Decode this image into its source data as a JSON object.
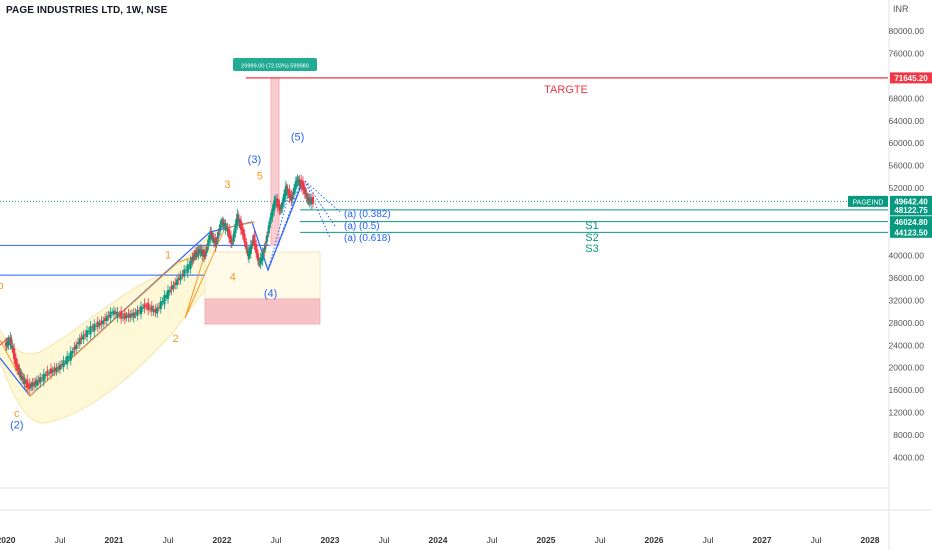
{
  "header": {
    "title": "PAGE INDUSTRIES LTD, 1W, NSE"
  },
  "y_axis": {
    "unit": "INR",
    "ticks": [
      {
        "v": 80000,
        "label": "80000.00"
      },
      {
        "v": 76000,
        "label": "76000.00"
      },
      {
        "v": 68000,
        "label": "68000.00"
      },
      {
        "v": 64000,
        "label": "64000.00"
      },
      {
        "v": 60000,
        "label": "60000.00"
      },
      {
        "v": 56000,
        "label": "56000.00"
      },
      {
        "v": 52000,
        "label": "52000.00"
      },
      {
        "v": 40000,
        "label": "40000.00"
      },
      {
        "v": 36000,
        "label": "36000.00"
      },
      {
        "v": 32000,
        "label": "32000.00"
      },
      {
        "v": 28000,
        "label": "28000.00"
      },
      {
        "v": 24000,
        "label": "24000.00"
      },
      {
        "v": 20000,
        "label": "20000.00"
      },
      {
        "v": 16000,
        "label": "16000.00"
      },
      {
        "v": 12000,
        "label": "12000.00"
      },
      {
        "v": 8000,
        "label": "8000.00"
      },
      {
        "v": 4000,
        "label": "4000.00"
      }
    ]
  },
  "x_axis": {
    "ticks": [
      {
        "t": 2020.0,
        "label": "2020"
      },
      {
        "t": 2020.5,
        "label": "Jul"
      },
      {
        "t": 2021.0,
        "label": "2021"
      },
      {
        "t": 2021.5,
        "label": "Jul"
      },
      {
        "t": 2022.0,
        "label": "2022"
      },
      {
        "t": 2022.5,
        "label": "Jul"
      },
      {
        "t": 2023.0,
        "label": "2023"
      },
      {
        "t": 2023.5,
        "label": "Jul"
      },
      {
        "t": 2024.0,
        "label": "2024"
      },
      {
        "t": 2024.5,
        "label": "Jul"
      },
      {
        "t": 2025.0,
        "label": "2025"
      },
      {
        "t": 2025.5,
        "label": "Jul"
      },
      {
        "t": 2026.0,
        "label": "2026"
      },
      {
        "t": 2026.5,
        "label": "Jul"
      },
      {
        "t": 2027.0,
        "label": "2027"
      },
      {
        "t": 2027.5,
        "label": "Jul"
      },
      {
        "t": 2028.0,
        "label": "2028"
      }
    ]
  },
  "chart_data": {
    "type": "line",
    "title": "PAGE INDUSTRIES LTD, 1W, NSE",
    "ylabel": "INR",
    "ylim": [
      2000,
      84000
    ],
    "xlim": [
      2020.0,
      2028.6
    ],
    "series": [
      {
        "name": "PAGEIND",
        "x": [
          2020.0,
          2020.05,
          2020.1,
          2020.15,
          2020.22,
          2020.3,
          2020.4,
          2020.5,
          2020.6,
          2020.7,
          2020.8,
          2020.9,
          2021.0,
          2021.1,
          2021.2,
          2021.3,
          2021.4,
          2021.5,
          2021.6,
          2021.7,
          2021.75,
          2021.8,
          2021.85,
          2021.9,
          2021.95,
          2022.0,
          2022.05,
          2022.1,
          2022.15,
          2022.2,
          2022.25,
          2022.3,
          2022.35,
          2022.4,
          2022.45,
          2022.5,
          2022.55,
          2022.6,
          2022.65,
          2022.7,
          2022.75,
          2022.8,
          2022.85
        ],
        "y": [
          24000,
          25000,
          20500,
          18500,
          16500,
          17500,
          19000,
          20000,
          22000,
          25000,
          27000,
          28000,
          30000,
          29000,
          29500,
          31000,
          30000,
          33000,
          35500,
          38000,
          40000,
          41000,
          40000,
          44000,
          42000,
          46000,
          45000,
          42000,
          47000,
          44000,
          40000,
          43000,
          38500,
          41000,
          46000,
          50000,
          48000,
          52000,
          50000,
          53500,
          52500,
          50000,
          49642.4
        ]
      }
    ],
    "price_labels": [
      {
        "label": "TARGTE",
        "value": 71645.2,
        "price_text": "71645.20",
        "color": "#f23645"
      },
      {
        "label": "PAGEIND",
        "value": 49642.4,
        "price_text": "49642.40",
        "color": "#089981"
      },
      {
        "label": "S1",
        "value": 48122.75,
        "price_text": "48122.75",
        "color": "#089981"
      },
      {
        "label": "S2",
        "value": 46024.8,
        "price_text": "46024.80",
        "color": "#089981"
      },
      {
        "label": "S3",
        "value": 44123.5,
        "price_text": "44123.50",
        "color": "#089981"
      }
    ],
    "fib_labels": [
      "(a) (0.382)",
      "(a) (0.5)",
      "(a) (0.618)"
    ],
    "measure_label": "29999.00 (72.03%) 599980",
    "wave_labels": {
      "blue": [
        {
          "text": "(2)",
          "t": 2020.1,
          "v": 9200
        },
        {
          "text": "(3)",
          "t": 2022.3,
          "v": 56500
        },
        {
          "text": "(4)",
          "t": 2022.45,
          "v": 32600
        },
        {
          "text": "(5)",
          "t": 2022.7,
          "v": 60500
        }
      ],
      "orange": [
        {
          "text": "b",
          "t": 2019.95,
          "v": 34000
        },
        {
          "text": "c",
          "t": 2020.1,
          "v": 11200
        },
        {
          "text": "1",
          "t": 2021.5,
          "v": 39500
        },
        {
          "text": "2",
          "t": 2021.57,
          "v": 24600
        },
        {
          "text": "3",
          "t": 2022.05,
          "v": 52000
        },
        {
          "text": "4",
          "t": 2022.1,
          "v": 35500
        },
        {
          "text": "5",
          "t": 2022.35,
          "v": 53500
        }
      ]
    },
    "colors": {
      "up": "#089981",
      "down": "#f23645",
      "blue": "#2962ff",
      "orange": "#f59a23",
      "target": "#f23645",
      "support": "#089981"
    }
  }
}
